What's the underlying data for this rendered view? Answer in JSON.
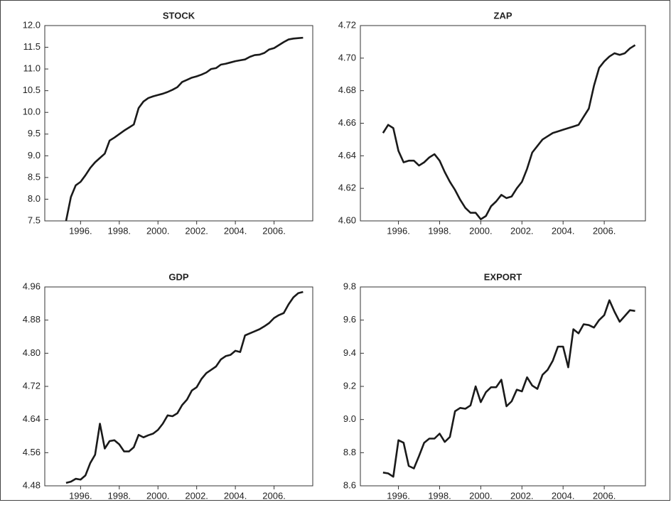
{
  "chart_data": [
    {
      "type": "line",
      "title": "STOCK",
      "x": [
        1995.25,
        1995.5,
        1995.75,
        1996,
        1996.25,
        1996.5,
        1996.75,
        1997,
        1997.25,
        1997.5,
        1997.75,
        1998,
        1998.25,
        1998.5,
        1998.75,
        1999,
        1999.25,
        1999.5,
        1999.75,
        2000,
        2000.25,
        2000.5,
        2000.75,
        2001,
        2001.25,
        2001.5,
        2001.75,
        2002,
        2002.25,
        2002.5,
        2002.75,
        2003,
        2003.25,
        2003.5,
        2003.75,
        2004,
        2004.25,
        2004.5,
        2004.75,
        2005,
        2005.25,
        2005.5,
        2005.75,
        2006,
        2006.25,
        2006.5,
        2006.75,
        2007,
        2007.25,
        2007.5
      ],
      "series": [
        {
          "color": "#1a1a1a",
          "values": [
            7.5,
            8.05,
            8.32,
            8.4,
            8.55,
            8.72,
            8.85,
            8.95,
            9.05,
            9.35,
            9.42,
            9.5,
            9.58,
            9.65,
            9.72,
            10.1,
            10.25,
            10.33,
            10.37,
            10.4,
            10.43,
            10.47,
            10.52,
            10.58,
            10.7,
            10.75,
            10.8,
            10.83,
            10.87,
            10.92,
            11.0,
            11.02,
            11.1,
            11.12,
            11.15,
            11.18,
            11.2,
            11.22,
            11.28,
            11.32,
            11.33,
            11.37,
            11.45,
            11.48,
            11.55,
            11.62,
            11.68,
            11.7,
            11.71,
            11.72
          ]
        }
      ],
      "xlim": [
        1994.15,
        2008.0
      ],
      "xticks": [
        {
          "value": 1996,
          "label": "1996."
        },
        {
          "value": 1998,
          "label": "1998."
        },
        {
          "value": 2000,
          "label": "2000."
        },
        {
          "value": 2002,
          "label": "2002."
        },
        {
          "value": 2004,
          "label": "2004."
        },
        {
          "value": 2006,
          "label": "2006."
        }
      ],
      "ylim": [
        7.5,
        12.0
      ],
      "yticks": [
        7.5,
        {
          "value": 8,
          "label": "8.0"
        },
        8.5,
        {
          "value": 9,
          "label": "9.0"
        },
        9.5,
        {
          "value": 10,
          "label": "10.0"
        },
        10.5,
        {
          "value": 11,
          "label": "11.0"
        },
        11.5,
        {
          "value": 12,
          "label": "12.0"
        }
      ]
    },
    {
      "type": "line",
      "title": "ZAP",
      "x": [
        1995.25,
        1995.5,
        1995.75,
        1996,
        1996.25,
        1996.5,
        1996.75,
        1997,
        1997.25,
        1997.5,
        1997.75,
        1998,
        1998.25,
        1998.5,
        1998.75,
        1999,
        1999.25,
        1999.5,
        1999.75,
        2000,
        2000.25,
        2000.5,
        2000.75,
        2001,
        2001.25,
        2001.5,
        2001.75,
        2002,
        2002.25,
        2002.5,
        2002.75,
        2003,
        2003.25,
        2003.5,
        2003.75,
        2004,
        2004.25,
        2004.5,
        2004.75,
        2005,
        2005.25,
        2005.5,
        2005.75,
        2006,
        2006.25,
        2006.5,
        2006.75,
        2007,
        2007.25,
        2007.5
      ],
      "series": [
        {
          "color": "#1a1a1a",
          "values": [
            4.654,
            4.659,
            4.657,
            4.643,
            4.636,
            4.637,
            4.637,
            4.634,
            4.636,
            4.639,
            4.641,
            4.637,
            4.63,
            4.624,
            4.619,
            4.613,
            4.608,
            4.605,
            4.605,
            4.601,
            4.603,
            4.609,
            4.612,
            4.616,
            4.614,
            4.615,
            4.62,
            4.624,
            4.632,
            4.642,
            4.646,
            4.65,
            4.652,
            4.654,
            4.655,
            4.656,
            4.657,
            4.658,
            4.659,
            4.664,
            4.669,
            4.683,
            4.694,
            4.698,
            4.701,
            4.703,
            4.702,
            4.703,
            4.706,
            4.708
          ]
        }
      ],
      "xlim": [
        1994.15,
        2008.0
      ],
      "xticks": [
        {
          "value": 1996,
          "label": "1996."
        },
        {
          "value": 1998,
          "label": "1998."
        },
        {
          "value": 2000,
          "label": "2000."
        },
        {
          "value": 2002,
          "label": "2002."
        },
        {
          "value": 2004,
          "label": "2004."
        },
        {
          "value": 2006,
          "label": "2006."
        }
      ],
      "ylim": [
        4.6,
        4.72
      ],
      "yticks": [
        {
          "value": 4.6,
          "label": "4.60"
        },
        4.62,
        4.64,
        4.66,
        4.68,
        {
          "value": 4.7,
          "label": "4.70"
        },
        4.72
      ]
    },
    {
      "type": "line",
      "title": "GDP",
      "x": [
        1995.25,
        1995.5,
        1995.75,
        1996,
        1996.25,
        1996.5,
        1996.75,
        1997,
        1997.25,
        1997.5,
        1997.75,
        1998,
        1998.25,
        1998.5,
        1998.75,
        1999,
        1999.25,
        1999.5,
        1999.75,
        2000,
        2000.25,
        2000.5,
        2000.75,
        2001,
        2001.25,
        2001.5,
        2001.75,
        2002,
        2002.25,
        2002.5,
        2002.75,
        2003,
        2003.25,
        2003.5,
        2003.75,
        2004,
        2004.25,
        2004.5,
        2004.75,
        2005,
        2005.25,
        2005.5,
        2005.75,
        2006,
        2006.25,
        2006.5,
        2006.75,
        2007,
        2007.25,
        2007.5
      ],
      "series": [
        {
          "color": "#1a1a1a",
          "values": [
            4.487,
            4.49,
            4.497,
            4.495,
            4.505,
            4.535,
            4.555,
            4.63,
            4.57,
            4.588,
            4.59,
            4.58,
            4.563,
            4.563,
            4.573,
            4.603,
            4.597,
            4.602,
            4.606,
            4.615,
            4.63,
            4.65,
            4.648,
            4.655,
            4.675,
            4.688,
            4.71,
            4.718,
            4.738,
            4.752,
            4.76,
            4.768,
            4.785,
            4.793,
            4.796,
            4.806,
            4.803,
            4.843,
            4.848,
            4.853,
            4.858,
            4.865,
            4.873,
            4.885,
            4.892,
            4.897,
            4.918,
            4.935,
            4.945,
            4.948
          ]
        }
      ],
      "xlim": [
        1994.15,
        2008.0
      ],
      "xticks": [
        {
          "value": 1996,
          "label": "1996."
        },
        {
          "value": 1998,
          "label": "1998."
        },
        {
          "value": 2000,
          "label": "2000."
        },
        {
          "value": 2002,
          "label": "2002."
        },
        {
          "value": 2004,
          "label": "2004."
        },
        {
          "value": 2006,
          "label": "2006."
        }
      ],
      "ylim": [
        4.48,
        4.96
      ],
      "yticks": [
        4.48,
        4.56,
        4.64,
        4.72,
        {
          "value": 4.8,
          "label": "4.80"
        },
        4.88,
        4.96
      ]
    },
    {
      "type": "line",
      "title": "EXPORT",
      "x": [
        1995.25,
        1995.5,
        1995.75,
        1996,
        1996.25,
        1996.5,
        1996.75,
        1997,
        1997.25,
        1997.5,
        1997.75,
        1998,
        1998.25,
        1998.5,
        1998.75,
        1999,
        1999.25,
        1999.5,
        1999.75,
        2000,
        2000.25,
        2000.5,
        2000.75,
        2001,
        2001.25,
        2001.5,
        2001.75,
        2002,
        2002.25,
        2002.5,
        2002.75,
        2003,
        2003.25,
        2003.5,
        2003.75,
        2004,
        2004.25,
        2004.5,
        2004.75,
        2005,
        2005.25,
        2005.5,
        2005.75,
        2006,
        2006.25,
        2006.5,
        2006.75,
        2007,
        2007.25,
        2007.5
      ],
      "series": [
        {
          "color": "#1a1a1a",
          "values": [
            8.68,
            8.675,
            8.655,
            8.875,
            8.86,
            8.72,
            8.705,
            8.78,
            8.86,
            8.885,
            8.885,
            8.915,
            8.865,
            8.895,
            9.05,
            9.07,
            9.065,
            9.085,
            9.2,
            9.105,
            9.165,
            9.195,
            9.195,
            9.24,
            9.08,
            9.11,
            9.18,
            9.17,
            9.255,
            9.205,
            9.185,
            9.27,
            9.3,
            9.355,
            9.44,
            9.44,
            9.315,
            9.545,
            9.52,
            9.575,
            9.57,
            9.555,
            9.6,
            9.63,
            9.72,
            9.65,
            9.59,
            9.625,
            9.66,
            9.655
          ]
        }
      ],
      "xlim": [
        1994.15,
        2008.0
      ],
      "xticks": [
        {
          "value": 1996,
          "label": "1996."
        },
        {
          "value": 1998,
          "label": "1998."
        },
        {
          "value": 2000,
          "label": "2000."
        },
        {
          "value": 2002,
          "label": "2002."
        },
        {
          "value": 2004,
          "label": "2004."
        },
        {
          "value": 2006,
          "label": "2006."
        }
      ],
      "ylim": [
        8.6,
        9.8
      ],
      "yticks": [
        8.6,
        8.8,
        {
          "value": 9,
          "label": "9.0"
        },
        9.2,
        9.4,
        9.6,
        9.8
      ]
    }
  ]
}
